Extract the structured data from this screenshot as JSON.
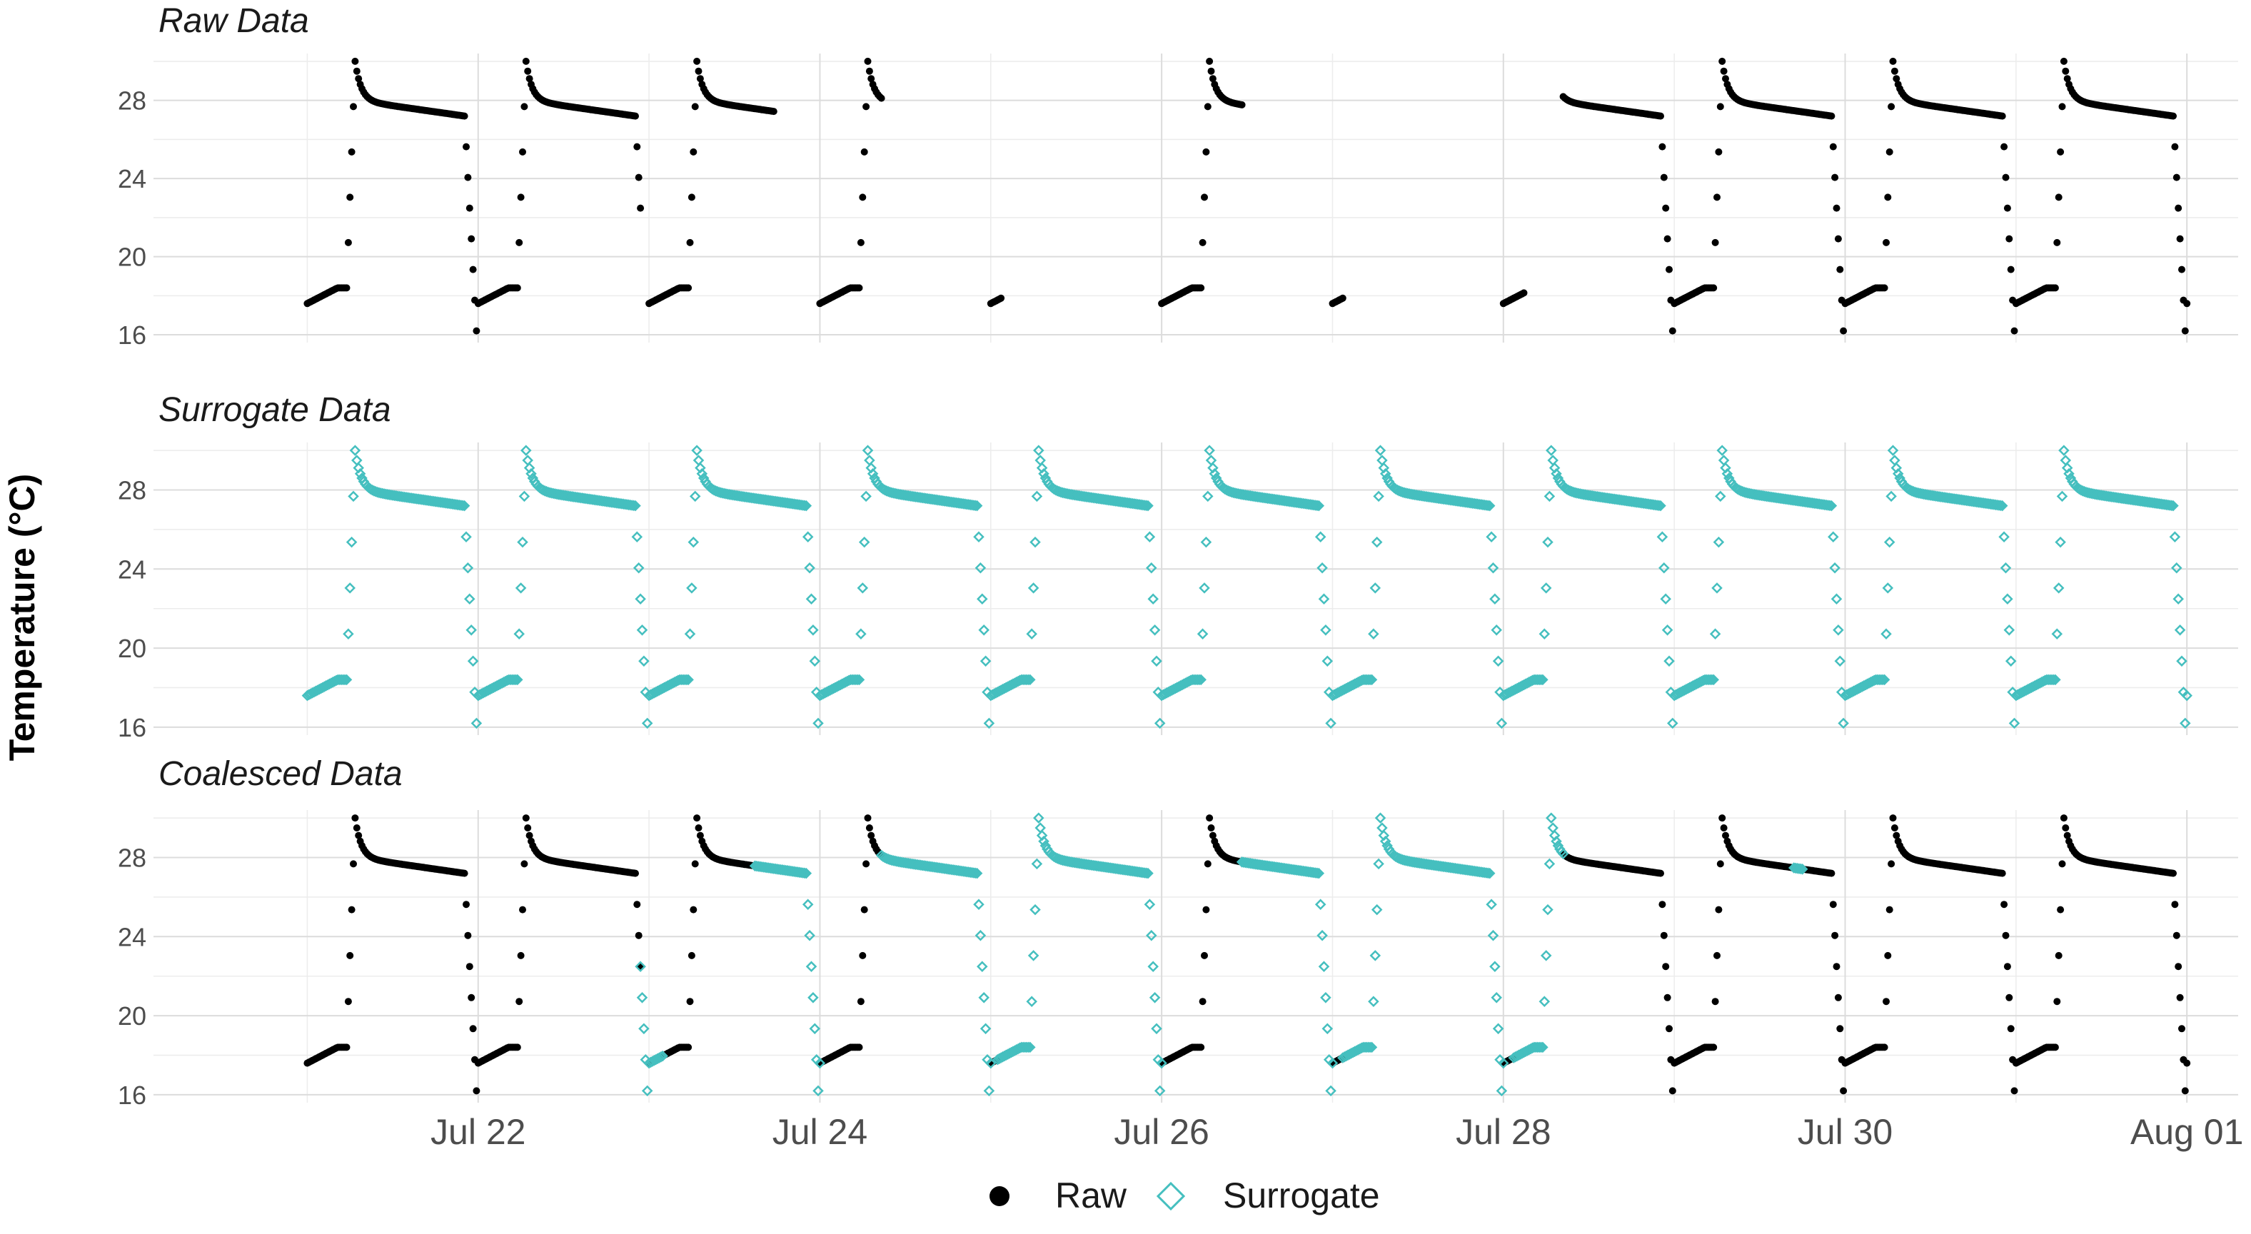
{
  "chart_data": {
    "type": "scatter",
    "ylabel": "Temperature (°C)",
    "xlabel": "",
    "x_ticks": [
      "Jul 22",
      "Jul 24",
      "Jul 26",
      "Jul 28",
      "Jul 30",
      "Aug 01"
    ],
    "x_tick_days": [
      22,
      24,
      26,
      28,
      30,
      32
    ],
    "xlim_days": [
      20.1,
      32.3
    ],
    "y_ticks": [
      16,
      20,
      24,
      28
    ],
    "ylim": [
      15.6,
      30.4
    ],
    "grid": true,
    "legend_position": "bottom",
    "legend": [
      {
        "name": "Raw",
        "marker": "filled-circle",
        "color": "#000000"
      },
      {
        "name": "Surrogate",
        "marker": "open-diamond",
        "color": "#45BFBF"
      }
    ],
    "daily_cycle": {
      "description": "daily temperature cycle sampled every 0.01 day",
      "rise_start_day_offset": 0.25,
      "peak": 30.0,
      "plateau_start": 28.0,
      "plateau_end": 27.2,
      "drop_start_day_offset": 0.92,
      "trough": 16.2,
      "night_level": 18.4
    },
    "panels": [
      {
        "title": "Raw Data",
        "series": [
          {
            "name": "Raw",
            "day_ranges": [
              [
                21.0,
                22.95
              ],
              [
                23.0,
                23.73
              ],
              [
                24.0,
                24.36
              ],
              [
                25.0,
                25.06
              ],
              [
                26.0,
                26.47
              ],
              [
                27.0,
                27.06
              ],
              [
                28.0,
                28.12
              ],
              [
                28.35,
                32.0
              ]
            ]
          }
        ]
      },
      {
        "title": "Surrogate Data",
        "series": [
          {
            "name": "Surrogate",
            "day_ranges": [
              [
                21.0,
                32.0
              ]
            ]
          }
        ]
      },
      {
        "title": "Coalesced Data",
        "series": [
          {
            "name": "Raw",
            "day_ranges": [
              [
                21.0,
                22.95
              ],
              [
                23.0,
                23.62
              ],
              [
                24.0,
                24.36
              ],
              [
                25.0,
                25.04
              ],
              [
                26.0,
                26.47
              ],
              [
                27.0,
                27.06
              ],
              [
                28.0,
                28.06
              ],
              [
                28.35,
                32.0
              ]
            ]
          },
          {
            "name": "Surrogate",
            "day_ranges": [
              [
                22.95,
                23.08
              ],
              [
                23.62,
                24.0
              ],
              [
                24.36,
                25.0
              ],
              [
                25.04,
                26.0
              ],
              [
                26.47,
                27.0
              ],
              [
                27.06,
                28.0
              ],
              [
                28.06,
                28.35
              ],
              [
                29.7,
                29.75
              ]
            ]
          }
        ]
      }
    ]
  }
}
